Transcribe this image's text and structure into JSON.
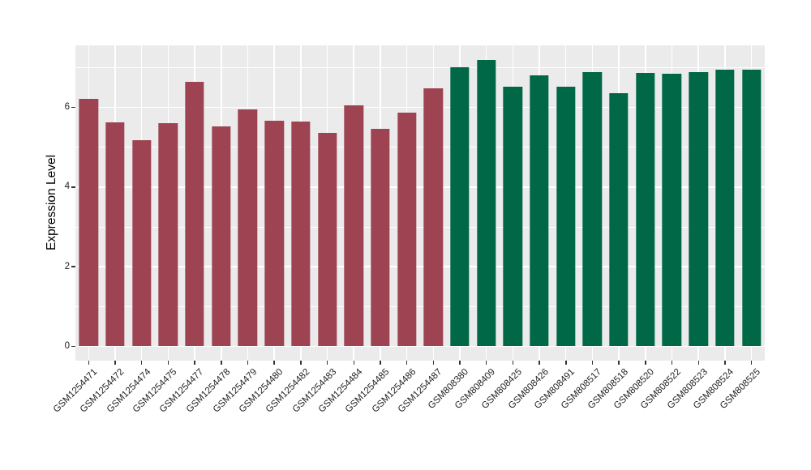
{
  "chart_data": {
    "type": "bar",
    "title": "",
    "xlabel": "",
    "ylabel": "Expression Level",
    "ylim": [
      0,
      7.56
    ],
    "yticks": [
      0,
      2,
      4,
      6
    ],
    "yticks_minor": [
      1,
      3,
      5,
      7
    ],
    "grid": true,
    "legend_position": "none",
    "panel_background": "#EBEBEB",
    "gridline_color": "#FFFFFF",
    "tick_color": "#333333",
    "group_colors": [
      "#9E4352",
      "#006847"
    ],
    "bars": [
      {
        "label": "GSM1254471",
        "value": 6.22,
        "group": 0
      },
      {
        "label": "GSM1254472",
        "value": 5.63,
        "group": 0
      },
      {
        "label": "GSM1254474",
        "value": 5.17,
        "group": 0
      },
      {
        "label": "GSM1254475",
        "value": 5.61,
        "group": 0
      },
      {
        "label": "GSM1254477",
        "value": 6.64,
        "group": 0
      },
      {
        "label": "GSM1254478",
        "value": 5.52,
        "group": 0
      },
      {
        "label": "GSM1254479",
        "value": 5.95,
        "group": 0
      },
      {
        "label": "GSM1254480",
        "value": 5.66,
        "group": 0
      },
      {
        "label": "GSM1254482",
        "value": 5.65,
        "group": 0
      },
      {
        "label": "GSM1254483",
        "value": 5.36,
        "group": 0
      },
      {
        "label": "GSM1254484",
        "value": 6.06,
        "group": 0
      },
      {
        "label": "GSM1254485",
        "value": 5.46,
        "group": 0
      },
      {
        "label": "GSM1254486",
        "value": 5.87,
        "group": 0
      },
      {
        "label": "GSM1254487",
        "value": 6.48,
        "group": 0
      },
      {
        "label": "GSM808380",
        "value": 7.02,
        "group": 1
      },
      {
        "label": "GSM808409",
        "value": 7.2,
        "group": 1
      },
      {
        "label": "GSM808425",
        "value": 6.52,
        "group": 1
      },
      {
        "label": "GSM808426",
        "value": 6.81,
        "group": 1
      },
      {
        "label": "GSM808491",
        "value": 6.52,
        "group": 1
      },
      {
        "label": "GSM808517",
        "value": 6.9,
        "group": 1
      },
      {
        "label": "GSM808518",
        "value": 6.36,
        "group": 1
      },
      {
        "label": "GSM808520",
        "value": 6.88,
        "group": 1
      },
      {
        "label": "GSM808522",
        "value": 6.85,
        "group": 1
      },
      {
        "label": "GSM808523",
        "value": 6.9,
        "group": 1
      },
      {
        "label": "GSM808524",
        "value": 6.96,
        "group": 1
      },
      {
        "label": "GSM808525",
        "value": 6.96,
        "group": 1
      }
    ]
  }
}
